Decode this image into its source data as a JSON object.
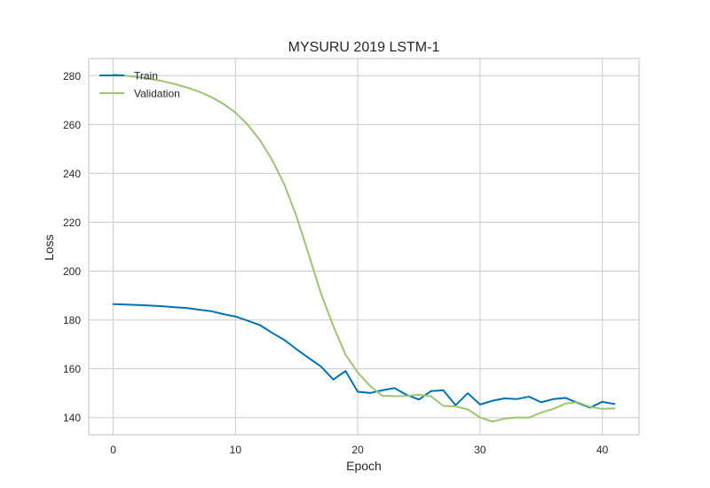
{
  "chart_data": {
    "type": "line",
    "title": "MYSURU 2019 LSTM-1",
    "xlabel": "Epoch",
    "ylabel": "Loss",
    "xlim": [
      -2,
      43
    ],
    "ylim": [
      133,
      287
    ],
    "xticks": [
      0,
      10,
      20,
      30,
      40
    ],
    "yticks": [
      140,
      160,
      180,
      200,
      220,
      240,
      260,
      280
    ],
    "grid": true,
    "legend_position": "top-left",
    "x": [
      0,
      1,
      2,
      3,
      4,
      5,
      6,
      7,
      8,
      9,
      10,
      11,
      12,
      13,
      14,
      15,
      16,
      17,
      18,
      19,
      20,
      21,
      22,
      23,
      24,
      25,
      26,
      27,
      28,
      29,
      30,
      31,
      32,
      33,
      34,
      35,
      36,
      37,
      38,
      39,
      40,
      41
    ],
    "series": [
      {
        "name": "Train",
        "color": "#0072b2",
        "values": [
          186.5,
          186.3,
          186.1,
          185.9,
          185.6,
          185.2,
          184.9,
          184.2,
          183.6,
          182.4,
          181.4,
          179.7,
          177.9,
          174.7,
          171.8,
          168.0,
          164.4,
          160.9,
          155.6,
          159.1,
          150.6,
          150.1,
          151.2,
          152.1,
          149.3,
          147.4,
          150.9,
          151.2,
          145.1,
          150.0,
          145.4,
          146.9,
          147.9,
          147.6,
          148.6,
          146.3,
          147.6,
          148.1,
          146.0,
          144.1,
          146.5,
          145.6
        ]
      },
      {
        "name": "Validation",
        "color": "#9ac671",
        "values": [
          280.5,
          280.0,
          279.4,
          278.7,
          277.8,
          276.6,
          275.2,
          273.5,
          271.3,
          268.5,
          264.9,
          259.9,
          253.6,
          245.5,
          235.4,
          222.3,
          206.6,
          190.7,
          177.5,
          165.8,
          158.5,
          153.0,
          149.0,
          148.8,
          148.9,
          149.4,
          148.7,
          144.8,
          144.6,
          143.4,
          140.1,
          138.4,
          139.6,
          140.1,
          140.0,
          142.1,
          143.6,
          145.8,
          146.3,
          144.4,
          143.6,
          143.8
        ]
      }
    ]
  }
}
